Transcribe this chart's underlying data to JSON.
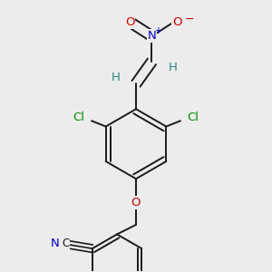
{
  "bg_color": "#ececec",
  "bond_color": "#1a1a1a",
  "atom_colors": {
    "C": "#1a1a1a",
    "N": "#0000cc",
    "O": "#cc0000",
    "Cl": "#009000",
    "H": "#2d8080"
  },
  "font_size": 9.5,
  "small_font_size": 8.0
}
